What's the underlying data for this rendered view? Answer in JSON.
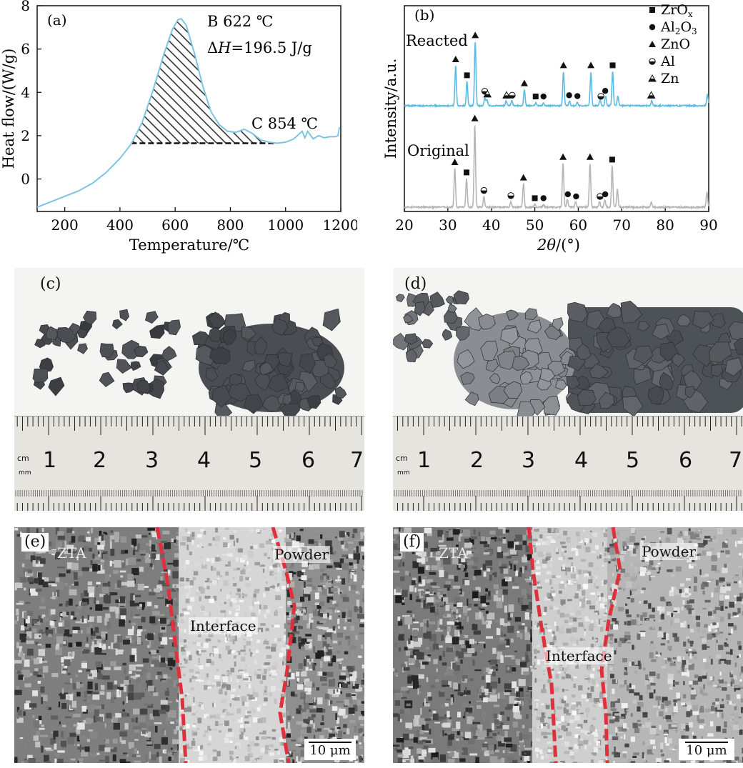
{
  "chart_data": [
    {
      "panel": "(a)",
      "type": "line",
      "xlabel": "Temperature/℃",
      "ylabel": "Heat flow/(W/g)",
      "xlim": [
        100,
        1200
      ],
      "ylim": [
        -1.5,
        8
      ],
      "xticks": [
        200,
        400,
        600,
        800,
        1000,
        1200
      ],
      "yticks": [
        0,
        2,
        4,
        6,
        8
      ],
      "series": [
        {
          "color": "#7cc4e0",
          "x": [
            100,
            150,
            200,
            250,
            300,
            350,
            400,
            440,
            480,
            520,
            560,
            590,
            610,
            622,
            640,
            670,
            700,
            730,
            760,
            790,
            820,
            850,
            880,
            910,
            940,
            970,
            1000,
            1030,
            1060,
            1070,
            1080,
            1100,
            1120,
            1140,
            1160,
            1180,
            1190,
            1195
          ],
          "y": [
            -1.3,
            -1.05,
            -0.8,
            -0.55,
            -0.2,
            0.3,
            0.95,
            1.6,
            2.6,
            4.1,
            5.8,
            6.9,
            7.35,
            7.4,
            7.1,
            5.8,
            4.3,
            3.1,
            2.5,
            2.2,
            2.15,
            2.3,
            2.1,
            1.8,
            1.7,
            1.65,
            1.7,
            1.85,
            2.2,
            1.9,
            2.2,
            1.85,
            2.0,
            1.9,
            1.95,
            1.95,
            2.0,
            2.4
          ]
        }
      ],
      "annotations": {
        "peak": "B 622 ℃",
        "enthalpy_prefix": "Δ",
        "enthalpy_var": "H",
        "enthalpy_value": "=196.5 J/g",
        "end": "C 854 ℃"
      },
      "hatch_range": [
        440,
        960
      ],
      "baseline_y": 1.65
    },
    {
      "panel": "(b)",
      "type": "line",
      "xlabel_var": "2θ",
      "xlabel_rest": "/(°)",
      "ylabel": "Intensity/a.u.",
      "xlim": [
        20,
        90
      ],
      "xticks": [
        20,
        30,
        40,
        50,
        60,
        70,
        80,
        90
      ],
      "series": [
        {
          "name": "Reacted",
          "color": "#5bbbe0",
          "peaks": [
            [
              31.8,
              1.0
            ],
            [
              34.4,
              0.6
            ],
            [
              36.3,
              1.6
            ],
            [
              38.5,
              0.2
            ],
            [
              39.0,
              0.15
            ],
            [
              43.4,
              0.12
            ],
            [
              44.7,
              0.12
            ],
            [
              47.6,
              0.4
            ],
            [
              50.2,
              0.07
            ],
            [
              52.0,
              0.07
            ],
            [
              56.6,
              0.85
            ],
            [
              58.0,
              0.12
            ],
            [
              59.8,
              0.08
            ],
            [
              62.9,
              0.85
            ],
            [
              65.0,
              0.15
            ],
            [
              66.3,
              0.25
            ],
            [
              67.9,
              0.85
            ],
            [
              69.1,
              0.25
            ],
            [
              76.9,
              0.12
            ],
            [
              89.7,
              0.3
            ]
          ]
        },
        {
          "name": "Original",
          "color": "#b5b5b5",
          "peaks": [
            [
              31.6,
              0.75
            ],
            [
              34.3,
              0.55
            ],
            [
              36.2,
              1.6
            ],
            [
              38.3,
              0.2
            ],
            [
              44.5,
              0.1
            ],
            [
              47.4,
              0.45
            ],
            [
              50.0,
              0.05
            ],
            [
              52.0,
              0.05
            ],
            [
              56.5,
              0.85
            ],
            [
              57.5,
              0.15
            ],
            [
              59.4,
              0.1
            ],
            [
              62.7,
              0.85
            ],
            [
              64.9,
              0.1
            ],
            [
              66.1,
              0.15
            ],
            [
              67.8,
              0.8
            ],
            [
              69.0,
              0.35
            ],
            [
              76.8,
              0.1
            ],
            [
              89.6,
              0.3
            ]
          ]
        }
      ],
      "legend": [
        {
          "symbol": "square",
          "label": "ZrO",
          "sub": "x"
        },
        {
          "symbol": "circle",
          "label": "Al",
          "sub": "2",
          "label2": "O",
          "sub2": "3"
        },
        {
          "symbol": "triangle",
          "label": "ZnO"
        },
        {
          "symbol": "halfcircle",
          "label": "Al"
        },
        {
          "symbol": "halftriangle",
          "label": "Zn"
        }
      ],
      "markers": {
        "reacted": [
          [
            31.8,
            "triangle"
          ],
          [
            34.4,
            "square"
          ],
          [
            36.3,
            "triangle"
          ],
          [
            38.5,
            "halfcircle"
          ],
          [
            39.1,
            "halftriangle"
          ],
          [
            43.5,
            "halftriangle"
          ],
          [
            44.8,
            "halfcircle"
          ],
          [
            47.6,
            "triangle"
          ],
          [
            50.2,
            "square"
          ],
          [
            52.0,
            "circle"
          ],
          [
            56.6,
            "triangle"
          ],
          [
            57.9,
            "circle"
          ],
          [
            59.8,
            "circle"
          ],
          [
            62.9,
            "triangle"
          ],
          [
            65.2,
            "halfcircle"
          ],
          [
            66.2,
            "circle"
          ],
          [
            67.9,
            "square"
          ],
          [
            76.8,
            "halftriangle"
          ]
        ],
        "original": [
          [
            31.6,
            "triangle"
          ],
          [
            34.3,
            "square"
          ],
          [
            36.2,
            "triangle"
          ],
          [
            38.3,
            "halfcircle"
          ],
          [
            44.5,
            "halfcircle"
          ],
          [
            47.4,
            "triangle"
          ],
          [
            50.0,
            "square"
          ],
          [
            52.0,
            "circle"
          ],
          [
            56.5,
            "triangle"
          ],
          [
            57.6,
            "circle"
          ],
          [
            59.5,
            "circle"
          ],
          [
            62.7,
            "triangle"
          ],
          [
            65.0,
            "halfcircle"
          ],
          [
            66.2,
            "circle"
          ],
          [
            67.8,
            "square"
          ]
        ]
      }
    }
  ],
  "panels": {
    "a": "(a)",
    "b": "(b)",
    "c": "(c)",
    "d": "(d)",
    "e": "(e)",
    "f": "(f)"
  },
  "ruler": {
    "unit_cm": "cm",
    "unit_mm": "mm",
    "numbers": [
      "1",
      "2",
      "3",
      "4",
      "5",
      "6",
      "7"
    ]
  },
  "sem_e": {
    "label_ztA": "ZTA",
    "label_powder": "Powder",
    "label_interface": "Interface",
    "scale": "10 μm"
  },
  "sem_f": {
    "label_ztA": "ZTA",
    "label_powder": "Powder",
    "label_interface": "Interface",
    "scale": "10 μm"
  }
}
